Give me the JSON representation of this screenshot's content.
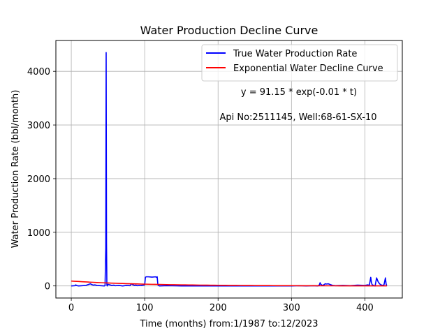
{
  "chart_data": {
    "type": "line",
    "title": "Water Production Decline Curve",
    "xlabel": "Time (months) from:1/1987 to:12/2023",
    "ylabel": "Water Production Rate (bbl/month)",
    "xlim": [
      -21,
      451
    ],
    "ylim": [
      -225,
      4575
    ],
    "xticks": [
      0,
      100,
      200,
      300,
      400
    ],
    "yticks": [
      0,
      1000,
      2000,
      3000,
      4000
    ],
    "grid": true,
    "legend_position": "top-right",
    "series": [
      {
        "name": "True Water Production Rate",
        "color": "#0000ff",
        "x": [
          0,
          5,
          6,
          8,
          10,
          15,
          20,
          24,
          26,
          28,
          30,
          32,
          35,
          40,
          45,
          46,
          47,
          47.5,
          48,
          48.5,
          49,
          50,
          55,
          58,
          60,
          65,
          70,
          75,
          80,
          82,
          84,
          86,
          88,
          90,
          95,
          100,
          101,
          102,
          105,
          110,
          115,
          116,
          117,
          118,
          120,
          130,
          150,
          200,
          250,
          300,
          310,
          320,
          330,
          336,
          338,
          339,
          340,
          341,
          342,
          344,
          346,
          348,
          350,
          352,
          354,
          356,
          360,
          370,
          380,
          390,
          400,
          404,
          406,
          407,
          408,
          409,
          410,
          412,
          414,
          415,
          416,
          418,
          420,
          422,
          424,
          426,
          428,
          429,
          430
        ],
        "y": [
          0,
          5,
          20,
          5,
          0,
          5,
          10,
          30,
          40,
          25,
          15,
          20,
          10,
          5,
          0,
          10,
          700,
          4350,
          800,
          20,
          0,
          30,
          10,
          15,
          5,
          10,
          0,
          10,
          5,
          40,
          20,
          10,
          15,
          5,
          10,
          20,
          160,
          170,
          170,
          165,
          170,
          160,
          170,
          20,
          0,
          5,
          0,
          0,
          0,
          0,
          5,
          0,
          5,
          0,
          20,
          60,
          30,
          20,
          10,
          20,
          40,
          35,
          40,
          30,
          20,
          10,
          5,
          10,
          5,
          15,
          10,
          20,
          10,
          80,
          160,
          60,
          20,
          10,
          0,
          80,
          150,
          80,
          40,
          20,
          10,
          20,
          150,
          30,
          10
        ]
      },
      {
        "name": "Exponential Water Decline Curve",
        "color": "#ff0000",
        "formula": "y = 91.15 * exp(-0.01 * t)",
        "a": 91.15,
        "b": -0.01,
        "x_range": [
          0,
          430
        ]
      }
    ],
    "annotations": [
      "y = 91.15 * exp(-0.01 * t)",
      "Api No:2511145, Well:68-61-SX-10"
    ]
  }
}
